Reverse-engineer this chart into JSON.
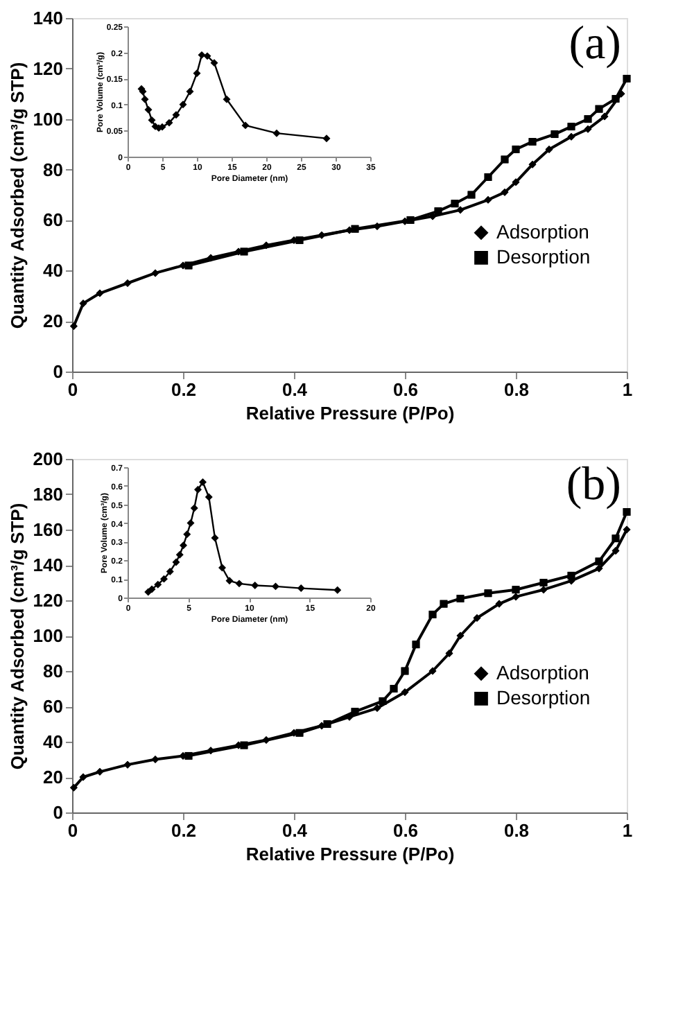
{
  "chart_data": [
    {
      "type": "line",
      "xlabel": "Relative Pressure (P/Po)",
      "ylabel": "Quantity Adsorbed (cm³/g STP)",
      "annotations": [
        "(a)"
      ],
      "xlim": [
        0,
        1
      ],
      "xticks": [
        0,
        0.2,
        0.4,
        0.6,
        0.8,
        1
      ],
      "ylim": [
        0,
        140
      ],
      "yticks": [
        0,
        20,
        40,
        60,
        80,
        100,
        120,
        140
      ],
      "grid": false,
      "legend": "right",
      "line_style": "solid",
      "series": [
        {
          "name": "Adsorption",
          "color": "#000000",
          "marker": "diamond",
          "x": [
            0.003,
            0.02,
            0.05,
            0.1,
            0.15,
            0.2,
            0.25,
            0.3,
            0.35,
            0.4,
            0.45,
            0.5,
            0.55,
            0.6,
            0.65,
            0.7,
            0.75,
            0.78,
            0.8,
            0.83,
            0.86,
            0.9,
            0.93,
            0.96,
            0.99
          ],
          "values": [
            18,
            27,
            31,
            35,
            39,
            42,
            45,
            47.5,
            50,
            52,
            54,
            56,
            57.5,
            59.5,
            61.5,
            64,
            68,
            71,
            75,
            82,
            88,
            93,
            96,
            101,
            110
          ]
        },
        {
          "name": "Desorption",
          "color": "#000000",
          "marker": "square",
          "x": [
            1.0,
            0.98,
            0.95,
            0.93,
            0.9,
            0.87,
            0.83,
            0.8,
            0.78,
            0.75,
            0.72,
            0.69,
            0.66,
            0.61,
            0.51,
            0.41,
            0.31,
            0.21
          ],
          "values": [
            116,
            108,
            104,
            100,
            97,
            94,
            91,
            88,
            84,
            77,
            70,
            66.5,
            63.5,
            60,
            56.5,
            52,
            47.5,
            42
          ]
        }
      ]
    },
    {
      "type": "line",
      "xlabel": "Pore Diameter (nm)",
      "ylabel": "Pore Volume (cm³/g)",
      "xlim": [
        0,
        35
      ],
      "xticks": [
        0,
        5,
        10,
        15,
        20,
        25,
        30,
        35
      ],
      "ylim": [
        0,
        0.25
      ],
      "yticks": [
        0,
        0.05,
        0.1,
        0.15,
        0.2,
        0.25
      ],
      "grid": false,
      "legend": false,
      "marker": "diamond",
      "line_style": "solid",
      "x": [
        2,
        2.2,
        2.5,
        3,
        3.5,
        4,
        4.5,
        5,
        6,
        7,
        8,
        9,
        10,
        10.7,
        11.5,
        12.5,
        14.3,
        17,
        21.5,
        28.7
      ],
      "series": [
        {
          "color": "#000000",
          "values": [
            0.13,
            0.125,
            0.11,
            0.09,
            0.07,
            0.058,
            0.055,
            0.057,
            0.065,
            0.08,
            0.1,
            0.125,
            0.16,
            0.195,
            0.193,
            0.18,
            0.11,
            0.06,
            0.045,
            0.035
          ]
        }
      ]
    },
    {
      "type": "line",
      "xlabel": "Relative Pressure (P/Po)",
      "ylabel": "Quantity Adsorbed (cm³/g STP)",
      "annotations": [
        "(b)"
      ],
      "xlim": [
        0,
        1
      ],
      "xticks": [
        0,
        0.2,
        0.4,
        0.6,
        0.8,
        1
      ],
      "ylim": [
        0,
        200
      ],
      "yticks": [
        0,
        20,
        40,
        60,
        80,
        100,
        120,
        140,
        160,
        180,
        200
      ],
      "grid": false,
      "legend": "right",
      "line_style": "solid",
      "series": [
        {
          "name": "Adsorption",
          "color": "#000000",
          "marker": "diamond",
          "x": [
            0.003,
            0.02,
            0.05,
            0.1,
            0.15,
            0.2,
            0.25,
            0.3,
            0.35,
            0.4,
            0.45,
            0.5,
            0.55,
            0.6,
            0.65,
            0.68,
            0.7,
            0.73,
            0.77,
            0.8,
            0.85,
            0.9,
            0.95,
            0.98,
            1.0
          ],
          "values": [
            14,
            20,
            23,
            27,
            30,
            32,
            35,
            38,
            41,
            45,
            49,
            54,
            59,
            68,
            80,
            90,
            100,
            110,
            118,
            122,
            126,
            131,
            138,
            148,
            160
          ]
        },
        {
          "name": "Desorption",
          "color": "#000000",
          "marker": "square",
          "x": [
            1.0,
            0.98,
            0.95,
            0.9,
            0.85,
            0.8,
            0.75,
            0.7,
            0.67,
            0.65,
            0.62,
            0.6,
            0.58,
            0.56,
            0.51,
            0.46,
            0.41,
            0.31,
            0.21
          ],
          "values": [
            170,
            155,
            142,
            134,
            130,
            126,
            124,
            121,
            118,
            112,
            95,
            80,
            70,
            63,
            57,
            50,
            45,
            38,
            32
          ]
        }
      ]
    },
    {
      "type": "line",
      "xlabel": "Pore Diameter (nm)",
      "ylabel": "Pore Volume (cm³/g)",
      "xlim": [
        0,
        20
      ],
      "xticks": [
        0,
        5,
        10,
        15,
        20
      ],
      "ylim": [
        0,
        0.7
      ],
      "yticks": [
        0,
        0.1,
        0.2,
        0.3,
        0.4,
        0.5,
        0.6,
        0.7
      ],
      "grid": false,
      "legend": false,
      "marker": "diamond",
      "line_style": "solid",
      "x": [
        1.7,
        2,
        2.5,
        3,
        3.5,
        4,
        4.3,
        4.6,
        4.9,
        5.2,
        5.5,
        5.8,
        6.2,
        6.7,
        7.2,
        7.8,
        8.4,
        9.2,
        10.5,
        12.2,
        14.3,
        17.3
      ],
      "series": [
        {
          "color": "#000000",
          "values": [
            0.03,
            0.045,
            0.07,
            0.1,
            0.14,
            0.19,
            0.23,
            0.28,
            0.34,
            0.4,
            0.48,
            0.58,
            0.62,
            0.54,
            0.32,
            0.16,
            0.09,
            0.075,
            0.065,
            0.06,
            0.05,
            0.04
          ]
        }
      ]
    }
  ]
}
